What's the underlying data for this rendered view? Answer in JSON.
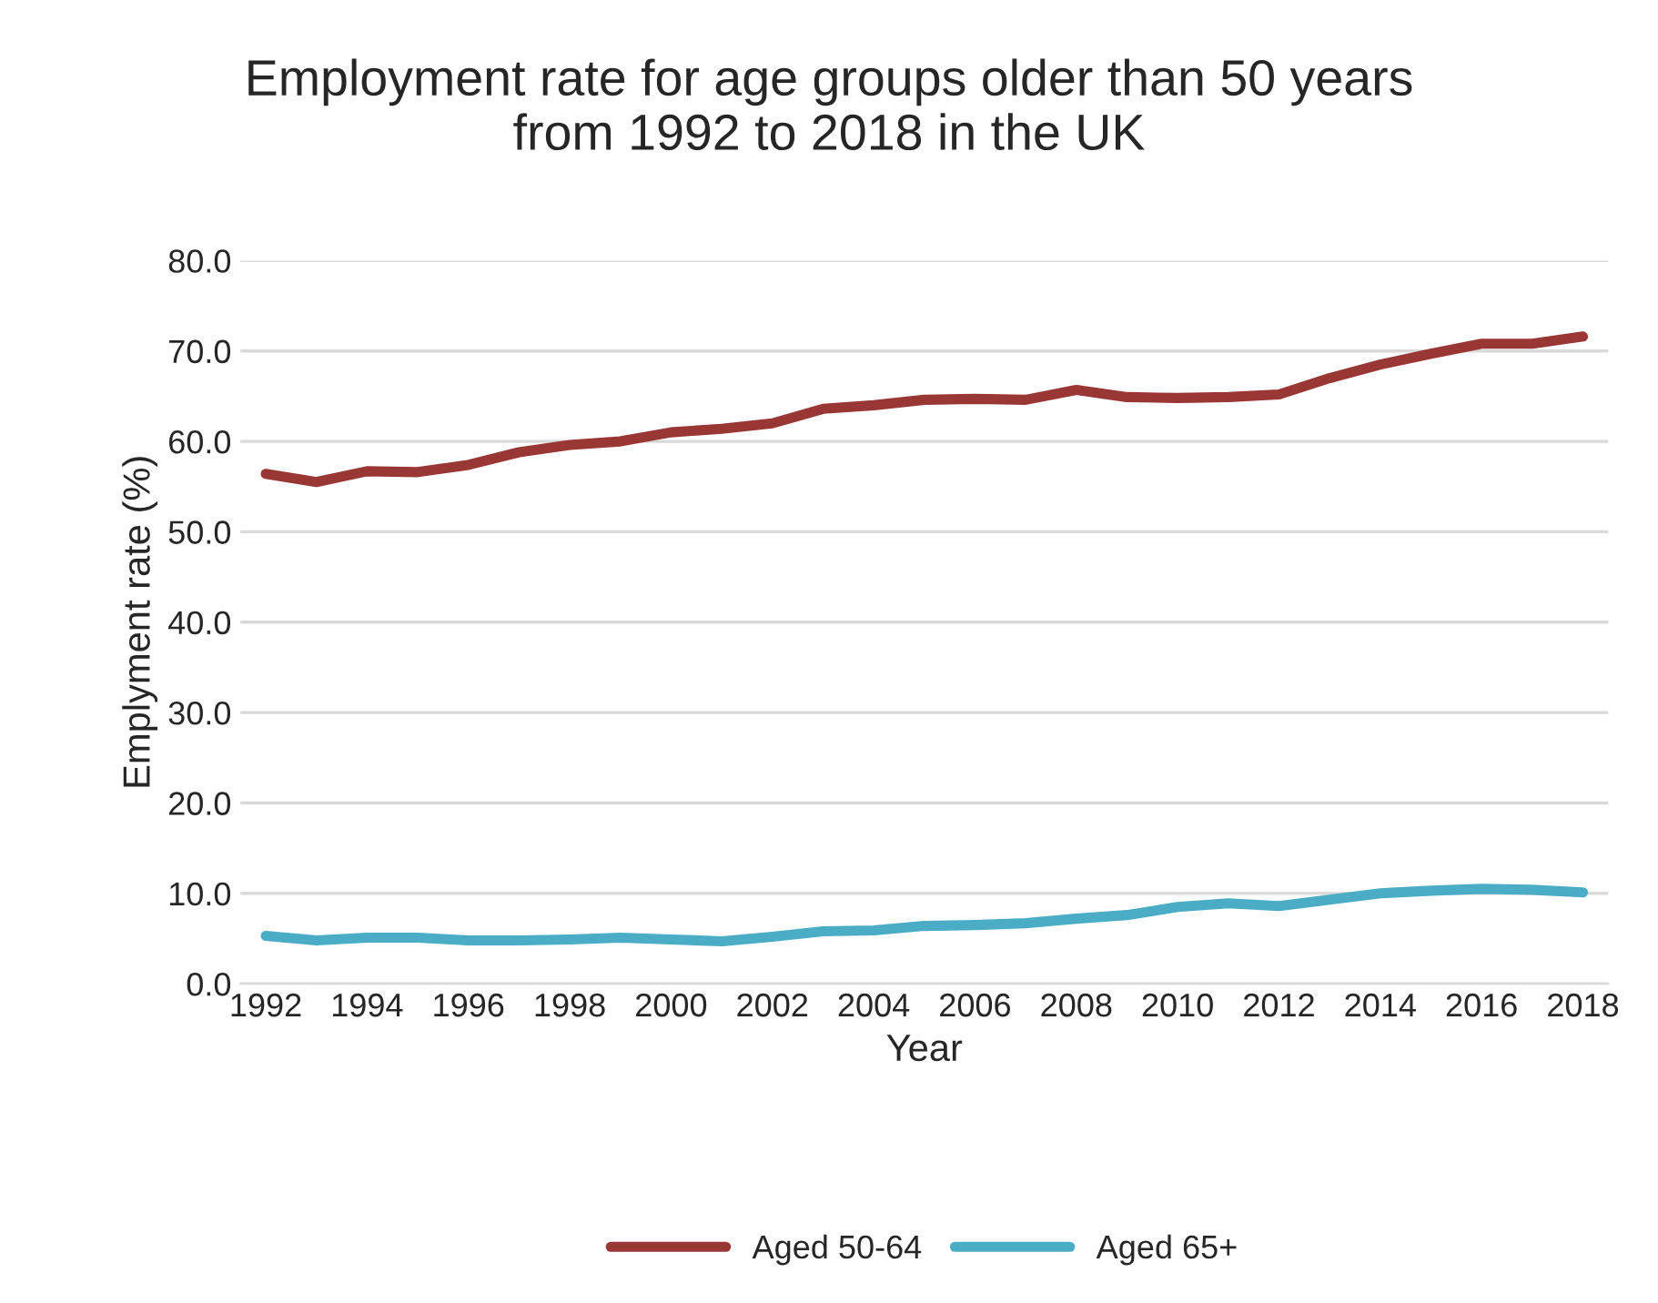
{
  "chart_data": {
    "type": "line",
    "title": "Employment rate for age groups older than 50 years\nfrom 1992 to 2018 in the UK",
    "xlabel": "Year",
    "ylabel": "Emplyment rate (%)",
    "x": [
      1992,
      1993,
      1994,
      1995,
      1996,
      1997,
      1998,
      1999,
      2000,
      2001,
      2002,
      2003,
      2004,
      2005,
      2006,
      2007,
      2008,
      2009,
      2010,
      2011,
      2012,
      2013,
      2014,
      2015,
      2016,
      2017,
      2018
    ],
    "series": [
      {
        "name": "Aged 50-64",
        "color": "#993735",
        "values": [
          56.4,
          55.5,
          56.7,
          56.6,
          57.4,
          58.8,
          59.6,
          60.0,
          61.0,
          61.4,
          62.0,
          63.6,
          64.0,
          64.6,
          64.7,
          64.6,
          65.7,
          64.9,
          64.8,
          64.9,
          65.2,
          67.0,
          68.5,
          69.7,
          70.8,
          70.8,
          71.6
        ]
      },
      {
        "name": "Aged 65+",
        "color": "#4bacc6",
        "values": [
          5.3,
          4.8,
          5.1,
          5.1,
          4.8,
          4.8,
          4.9,
          5.1,
          4.9,
          4.7,
          5.2,
          5.8,
          5.9,
          6.4,
          6.5,
          6.7,
          7.2,
          7.6,
          8.5,
          8.9,
          8.6,
          9.3,
          10.0,
          10.3,
          10.5,
          10.4,
          10.1
        ]
      }
    ],
    "xlim": [
      1991.5,
      2018.5
    ],
    "xticks": [
      1992,
      1994,
      1996,
      1998,
      2000,
      2002,
      2004,
      2006,
      2008,
      2010,
      2012,
      2014,
      2016,
      2018
    ],
    "ylim": [
      0,
      80
    ],
    "yticks": [
      {
        "value": 0,
        "label": "0.0"
      },
      {
        "value": 10,
        "label": "10.0"
      },
      {
        "value": 20,
        "label": "20.0"
      },
      {
        "value": 30,
        "label": "30.0"
      },
      {
        "value": 40,
        "label": "40.0"
      },
      {
        "value": 50,
        "label": "50.0"
      },
      {
        "value": 60,
        "label": "60.0"
      },
      {
        "value": 70,
        "label": "70.0"
      },
      {
        "value": 80,
        "label": "80.0"
      }
    ],
    "grid": "y",
    "legend": "bottom",
    "line_style": "solid"
  }
}
